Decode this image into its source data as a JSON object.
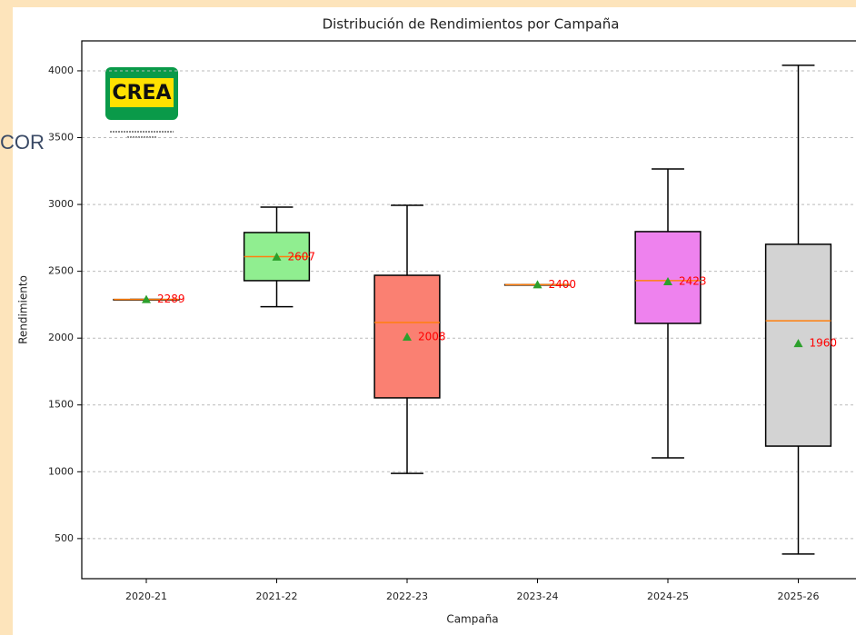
{
  "chart_data": {
    "type": "box",
    "title": "Distribución de Rendimientos por Campaña",
    "xlabel": "Campaña",
    "ylabel": "Rendimiento",
    "categories": [
      "2020-21",
      "2021-22",
      "2022-23",
      "2023-24",
      "2024-25",
      "2025-26"
    ],
    "boxes": [
      {
        "min": 2289,
        "q1": 2289,
        "median": 2289,
        "q3": 2289,
        "max": 2289,
        "mean": 2289
      },
      {
        "min": 2235,
        "q1": 2430,
        "median": 2610,
        "q3": 2790,
        "max": 2980,
        "mean": 2607
      },
      {
        "min": 988,
        "q1": 1553,
        "median": 2117,
        "q3": 2470,
        "max": 2994,
        "mean": 2008
      },
      {
        "min": 2400,
        "q1": 2400,
        "median": 2400,
        "q3": 2400,
        "max": 2400,
        "mean": 2400
      },
      {
        "min": 1104,
        "q1": 2110,
        "median": 2430,
        "q3": 2797,
        "max": 3266,
        "mean": 2423
      },
      {
        "min": 384,
        "q1": 1192,
        "median": 2130,
        "q3": 2702,
        "max": 4041,
        "mean": 1960
      }
    ],
    "colors": [
      "#add8e6",
      "#90ee90",
      "#fa8072",
      "#f4a460",
      "#ee82ee",
      "#d3d3d3"
    ],
    "median_color": "#ff7f0e",
    "mean_color": "#2ca02c",
    "mean_label_color": "#ff0000",
    "ylim": [
      200,
      4224
    ],
    "yticks": [
      500,
      1000,
      1500,
      2000,
      2500,
      3000,
      3500,
      4000
    ],
    "grid": true
  },
  "logo": {
    "text": "CREA"
  },
  "side_text": "COR"
}
